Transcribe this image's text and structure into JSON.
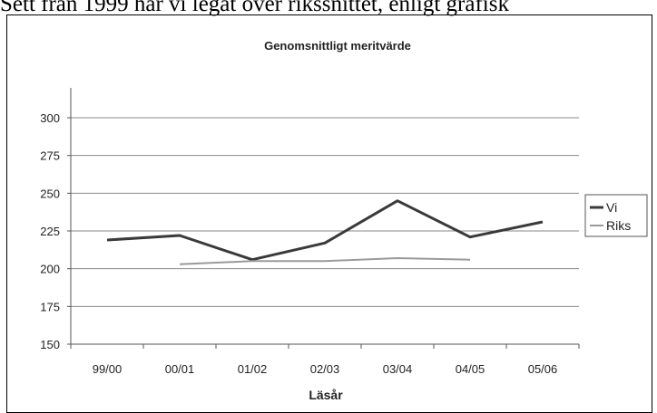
{
  "caption": "Sett från 1999 har vi legat över rikssnittet, enligt grafisk",
  "chart_data": {
    "type": "line",
    "title": "Genomsnittligt meritvärde",
    "xlabel": "Läsår",
    "ylabel": "",
    "categories": [
      "99/00",
      "00/01",
      "01/02",
      "02/03",
      "03/04",
      "04/05",
      "05/06"
    ],
    "ylim": [
      150,
      300
    ],
    "yticks": [
      150,
      175,
      200,
      225,
      250,
      275,
      300
    ],
    "grid": true,
    "legend": "right",
    "series": [
      {
        "name": "Vi",
        "values": [
          219,
          222,
          206,
          217,
          245,
          221,
          231
        ],
        "color": "#3a3a3a"
      },
      {
        "name": "Riks",
        "values": [
          null,
          203,
          205,
          205,
          207,
          206,
          null
        ],
        "color": "#9a9a9a"
      }
    ]
  }
}
